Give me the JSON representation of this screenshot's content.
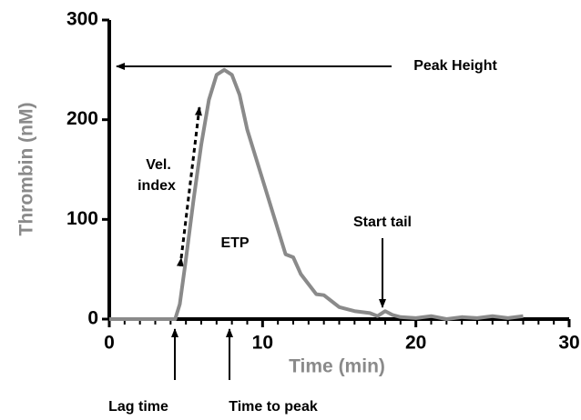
{
  "chart_data": {
    "type": "line",
    "x_label": "Time (min)",
    "y_label": "Thrombin (nM)",
    "x": [
      0,
      4.3,
      4.6,
      5,
      5.5,
      6,
      6.5,
      7,
      7.5,
      8,
      8.5,
      9,
      9.5,
      10,
      10.5,
      11,
      11.5,
      12,
      12.5,
      13,
      13.5,
      14,
      14.5,
      15,
      16,
      17,
      17.5,
      18,
      18.5,
      19,
      20,
      21,
      22,
      23,
      24,
      25,
      26,
      27
    ],
    "series": [
      {
        "color": "#8a8a8a",
        "values": [
          0,
          0,
          15,
          60,
          120,
          175,
          220,
          245,
          250,
          245,
          225,
          190,
          165,
          140,
          115,
          90,
          65,
          62,
          45,
          35,
          25,
          24,
          18,
          12,
          8,
          6,
          3,
          8,
          4,
          2,
          1,
          3,
          0,
          2,
          1,
          3,
          1,
          3
        ]
      }
    ],
    "xlim": [
      0,
      30
    ],
    "xticks": [
      0,
      10,
      20,
      30
    ],
    "ylim": [
      0,
      300
    ],
    "yticks": [
      0,
      100,
      200,
      300
    ],
    "grid": false,
    "annotations": [
      "Peak Height",
      "Vel.",
      "index",
      "ETP",
      "Start tail",
      "Lag time",
      "Time to peak"
    ]
  }
}
